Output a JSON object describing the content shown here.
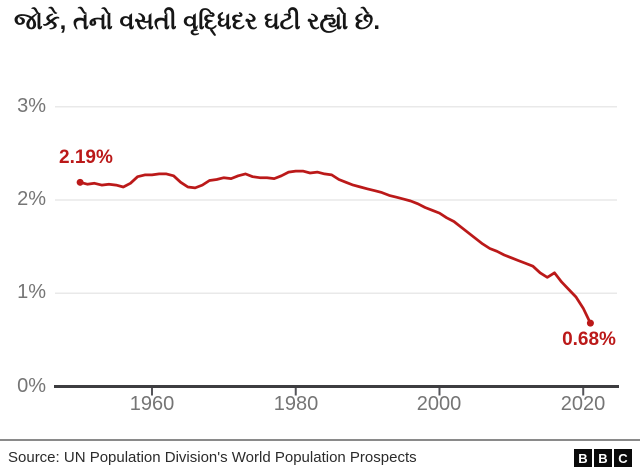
{
  "title": "જોકે, તેનો વસતી વૃદ્ધિદર ઘટી રહ્યો છે.",
  "footer": {
    "source": "Source: UN Population Division's World Population Prospects",
    "logo_letters": [
      "B",
      "B",
      "C"
    ]
  },
  "colors": {
    "line": "#bb1919",
    "annotation": "#bb1919",
    "axis": "#3d3d40",
    "tick": "#55555a",
    "grid": "#e9e9e9",
    "tick_label": "#757575",
    "title": "#161616"
  },
  "chart_data": {
    "type": "line",
    "title": "જોકે, તેનો વસતી વૃદ્ધિદર ઘટી રહ્યો છે.",
    "xlabel": "",
    "ylabel": "",
    "ylim": [
      0,
      3
    ],
    "xlim": [
      1946.5,
      2023.5
    ],
    "grid": "horizontal",
    "legend": "none",
    "yticks": [
      {
        "label": "0%",
        "value": 0
      },
      {
        "label": "1%",
        "value": 1
      },
      {
        "label": "2%",
        "value": 2
      },
      {
        "label": "3%",
        "value": 3
      }
    ],
    "xticks": [
      {
        "label": "1960",
        "value": 1960
      },
      {
        "label": "1980",
        "value": 1980
      },
      {
        "label": "2000",
        "value": 2000
      },
      {
        "label": "2020",
        "value": 2020
      }
    ],
    "annotations": [
      {
        "text": "2.19%",
        "year": 1950,
        "value": 2.19,
        "placement": "above-first-point"
      },
      {
        "text": "0.68%",
        "year": 2021,
        "value": 0.68,
        "placement": "below-last-point"
      }
    ],
    "series": [
      {
        "name": "population-growth-rate",
        "x": [
          1950,
          1951,
          1952,
          1953,
          1954,
          1955,
          1956,
          1957,
          1958,
          1959,
          1960,
          1961,
          1962,
          1963,
          1964,
          1965,
          1966,
          1967,
          1968,
          1969,
          1970,
          1971,
          1972,
          1973,
          1974,
          1975,
          1976,
          1977,
          1978,
          1979,
          1980,
          1981,
          1982,
          1983,
          1984,
          1985,
          1986,
          1987,
          1988,
          1989,
          1990,
          1991,
          1992,
          1993,
          1994,
          1995,
          1996,
          1997,
          1998,
          1999,
          2000,
          2001,
          2002,
          2003,
          2004,
          2005,
          2006,
          2007,
          2008,
          2009,
          2010,
          2011,
          2012,
          2013,
          2014,
          2015,
          2016,
          2017,
          2018,
          2019,
          2020,
          2021
        ],
        "values": [
          2.19,
          2.17,
          2.18,
          2.16,
          2.17,
          2.16,
          2.14,
          2.18,
          2.25,
          2.27,
          2.27,
          2.28,
          2.28,
          2.26,
          2.19,
          2.14,
          2.13,
          2.16,
          2.21,
          2.22,
          2.24,
          2.23,
          2.26,
          2.28,
          2.25,
          2.24,
          2.24,
          2.23,
          2.26,
          2.3,
          2.31,
          2.31,
          2.29,
          2.3,
          2.28,
          2.27,
          2.22,
          2.19,
          2.16,
          2.14,
          2.12,
          2.1,
          2.08,
          2.05,
          2.03,
          2.01,
          1.99,
          1.96,
          1.92,
          1.89,
          1.86,
          1.81,
          1.77,
          1.71,
          1.65,
          1.59,
          1.53,
          1.48,
          1.45,
          1.41,
          1.38,
          1.35,
          1.32,
          1.29,
          1.22,
          1.17,
          1.22,
          1.12,
          1.04,
          0.96,
          0.84,
          0.68
        ]
      }
    ]
  }
}
